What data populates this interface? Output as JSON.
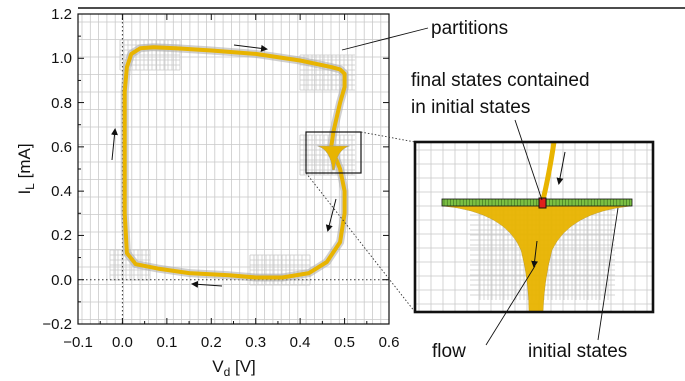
{
  "chart_data": {
    "type": "line",
    "title": "",
    "xlabel": "V",
    "xlabel_sub": "d",
    "xlabel_unit": " [V]",
    "ylabel": "I",
    "ylabel_sub": "L",
    "ylabel_unit": " [mA]",
    "xlim": [
      -0.1,
      0.6
    ],
    "ylim": [
      -0.2,
      1.2
    ],
    "x_ticks": [
      "−0.1",
      "0.0",
      "0.1",
      "0.2",
      "0.3",
      "0.4",
      "0.5",
      "0.6"
    ],
    "y_ticks": [
      "−0.2",
      "0.0",
      "0.2",
      "0.4",
      "0.6",
      "0.8",
      "1.0",
      "1.2"
    ],
    "grid": "partition-boxes",
    "colors": {
      "trajectory": "#e8b400",
      "initial_states": "#7bc043",
      "final_states": "#e0201b",
      "partitions": "#c9c9c9"
    },
    "series": [
      {
        "x": [
          0.47,
          0.49,
          0.5,
          0.5,
          0.49,
          0.46,
          0.42,
          0.36,
          0.3,
          0.24,
          0.15,
          0.08,
          0.03,
          0.01,
          0.005,
          0.005,
          0.005,
          0.01,
          0.02,
          0.04,
          0.07,
          0.12,
          0.2,
          0.3,
          0.4,
          0.47,
          0.49,
          0.5,
          0.5,
          0.5,
          0.49,
          0.475,
          0.47
        ],
        "y": [
          0.6,
          0.5,
          0.4,
          0.3,
          0.17,
          0.08,
          0.03,
          0.01,
          0.01,
          0.02,
          0.03,
          0.05,
          0.07,
          0.12,
          0.3,
          0.6,
          0.85,
          0.96,
          1.02,
          1.045,
          1.05,
          1.045,
          1.035,
          1.02,
          0.99,
          0.96,
          0.95,
          0.93,
          0.9,
          0.87,
          0.8,
          0.67,
          0.6
        ]
      }
    ],
    "annotations": {
      "partitions": "partitions",
      "final_states_line1": "final states contained",
      "final_states_line2": "in initial states",
      "flow": "flow",
      "initial_states": "initial states"
    }
  }
}
